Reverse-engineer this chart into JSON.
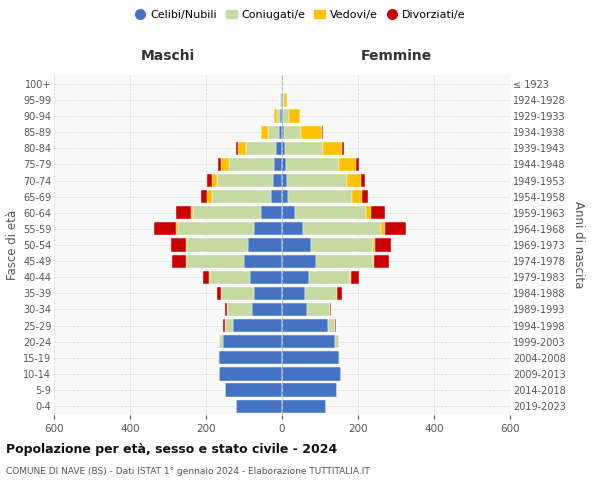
{
  "age_groups": [
    "0-4",
    "5-9",
    "10-14",
    "15-19",
    "20-24",
    "25-29",
    "30-34",
    "35-39",
    "40-44",
    "45-49",
    "50-54",
    "55-59",
    "60-64",
    "65-69",
    "70-74",
    "75-79",
    "80-84",
    "85-89",
    "90-94",
    "95-99",
    "100+"
  ],
  "birth_years": [
    "2019-2023",
    "2014-2018",
    "2009-2013",
    "2004-2008",
    "1999-2003",
    "1994-1998",
    "1989-1993",
    "1984-1988",
    "1979-1983",
    "1974-1978",
    "1969-1973",
    "1964-1968",
    "1959-1963",
    "1954-1958",
    "1949-1953",
    "1944-1948",
    "1939-1943",
    "1934-1938",
    "1929-1933",
    "1924-1928",
    "≤ 1923"
  ],
  "male_celibi": [
    120,
    150,
    165,
    165,
    155,
    130,
    80,
    75,
    85,
    100,
    90,
    75,
    55,
    30,
    25,
    20,
    15,
    8,
    5,
    2,
    2
  ],
  "male_coniugati": [
    0,
    0,
    0,
    3,
    10,
    20,
    65,
    85,
    105,
    150,
    160,
    200,
    180,
    155,
    145,
    120,
    80,
    30,
    8,
    2,
    0
  ],
  "male_vedovi": [
    0,
    0,
    0,
    0,
    0,
    0,
    0,
    0,
    1,
    2,
    2,
    3,
    5,
    12,
    15,
    20,
    22,
    18,
    8,
    2,
    0
  ],
  "male_divorziati": [
    0,
    0,
    0,
    0,
    0,
    5,
    5,
    12,
    18,
    38,
    40,
    60,
    40,
    15,
    12,
    8,
    5,
    0,
    0,
    0,
    0
  ],
  "female_celibi": [
    115,
    145,
    155,
    150,
    140,
    120,
    65,
    60,
    70,
    90,
    75,
    55,
    35,
    15,
    12,
    10,
    8,
    5,
    3,
    2,
    1
  ],
  "female_coniugati": [
    0,
    0,
    0,
    2,
    10,
    20,
    60,
    85,
    110,
    150,
    165,
    205,
    185,
    170,
    160,
    140,
    100,
    45,
    15,
    2,
    0
  ],
  "female_vedovi": [
    0,
    0,
    0,
    0,
    0,
    0,
    0,
    1,
    2,
    3,
    5,
    10,
    15,
    25,
    35,
    45,
    50,
    55,
    30,
    8,
    2
  ],
  "female_divorziati": [
    0,
    0,
    0,
    0,
    0,
    3,
    5,
    12,
    20,
    38,
    42,
    55,
    35,
    15,
    12,
    8,
    5,
    2,
    0,
    0,
    0
  ],
  "color_celibi": "#4472c4",
  "color_coniugati": "#c5d9a0",
  "color_vedovi": "#ffc000",
  "color_divorziati": "#cc0000",
  "title": "Popolazione per età, sesso e stato civile - 2024",
  "subtitle": "COMUNE DI NAVE (BS) - Dati ISTAT 1° gennaio 2024 - Elaborazione TUTTITALIA.IT",
  "label_maschi": "Maschi",
  "label_femmine": "Femmine",
  "ylabel_left": "Fasce di età",
  "ylabel_right": "Anni di nascita",
  "legend_labels": [
    "Celibi/Nubili",
    "Coniugati/e",
    "Vedovi/e",
    "Divorziati/e"
  ],
  "xlim": 600,
  "xticks": [
    -600,
    -400,
    -200,
    0,
    200,
    400,
    600
  ]
}
